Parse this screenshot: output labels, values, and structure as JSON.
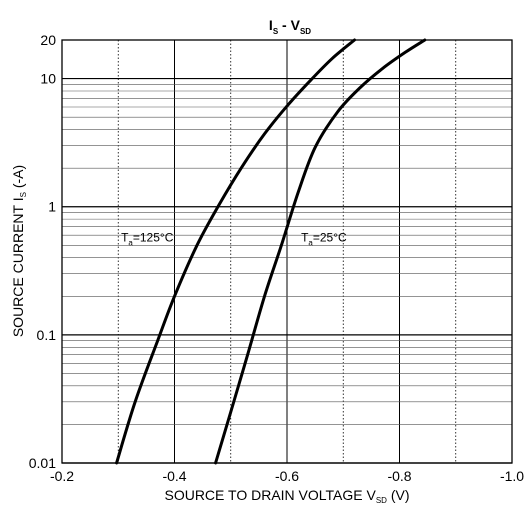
{
  "chart_data": {
    "type": "line",
    "title": {
      "main": "I",
      "sub1": "S",
      "dash": " - V",
      "sub2": "SD"
    },
    "xlabel": {
      "main": "SOURCE TO DRAIN VOLTAGE V",
      "sub": "SD",
      "unit": " (V)"
    },
    "ylabel": {
      "main": "SOURCE CURRENT I",
      "sub": "S",
      "unit": " (-A)"
    },
    "xlim": [
      -0.2,
      -1.0
    ],
    "ylim": [
      0.01,
      20
    ],
    "yscale": "log",
    "x_ticks": [
      -0.2,
      -0.4,
      -0.6,
      -0.8,
      -1.0
    ],
    "x_tick_labels": [
      "-0.2",
      "-0.4",
      "-0.6",
      "-0.8",
      "-1.0"
    ],
    "x_minor_ticks": [
      -0.3,
      -0.5,
      -0.7,
      -0.9
    ],
    "y_ticks": [
      0.01,
      0.1,
      1,
      10,
      20
    ],
    "y_tick_labels": [
      "0.01",
      "0.1",
      "1",
      "10",
      "20"
    ],
    "grid": true,
    "series": [
      {
        "key": "t125",
        "x": [
          -0.297,
          -0.33,
          -0.37,
          -0.4,
          -0.44,
          -0.48,
          -0.52,
          -0.56,
          -0.6,
          -0.64,
          -0.68,
          -0.72
        ],
        "y": [
          0.01,
          0.03,
          0.09,
          0.2,
          0.5,
          1.05,
          2.05,
          3.7,
          6.1,
          9.5,
          14.3,
          20
        ]
      },
      {
        "key": "t25",
        "x": [
          -0.473,
          -0.5,
          -0.53,
          -0.56,
          -0.59,
          -0.62,
          -0.65,
          -0.69,
          -0.73,
          -0.77,
          -0.81,
          -0.845
        ],
        "y": [
          0.01,
          0.025,
          0.07,
          0.2,
          0.5,
          1.3,
          2.9,
          5.5,
          8.5,
          12,
          16,
          20
        ]
      }
    ],
    "annotations": [
      {
        "key": "t125",
        "main": "T",
        "sub": "a",
        "rest": "=125°C",
        "x": -0.305,
        "y": 0.5
      },
      {
        "key": "t25",
        "main": "T",
        "sub": "a",
        "rest": "=25°C",
        "x": -0.625,
        "y": 0.5
      }
    ]
  }
}
